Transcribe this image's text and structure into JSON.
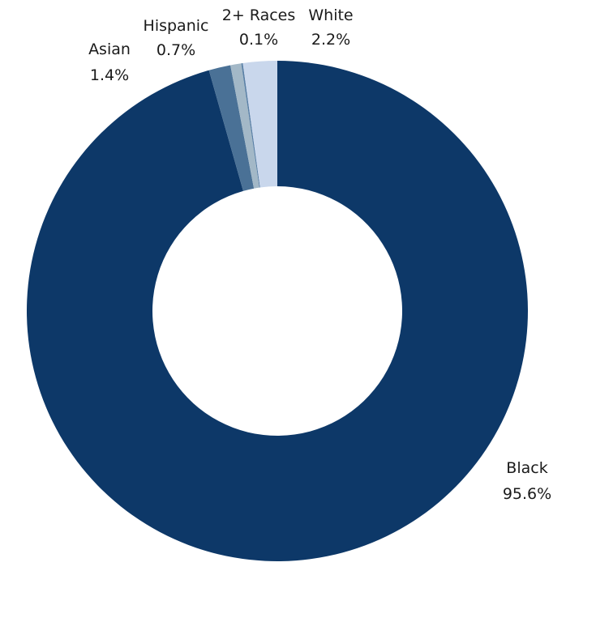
{
  "chart_data": {
    "type": "pie",
    "donut": true,
    "title": "",
    "categories": [
      "Black",
      "Asian",
      "Hispanic",
      "2+ Races",
      "White"
    ],
    "values": [
      95.6,
      1.4,
      0.7,
      0.1,
      2.2
    ],
    "labels": [
      {
        "name": "Black",
        "value": "95.6%"
      },
      {
        "name": "Asian",
        "value": "1.4%"
      },
      {
        "name": "Hispanic",
        "value": "0.7%"
      },
      {
        "name": "2+ Races",
        "value": "0.1%"
      },
      {
        "name": "White",
        "value": "2.2%"
      }
    ],
    "colors": [
      "#0d3868",
      "#4a7196",
      "#a3b8c7",
      "#5a80a6",
      "#c9d7ec"
    ],
    "legend": "none"
  }
}
